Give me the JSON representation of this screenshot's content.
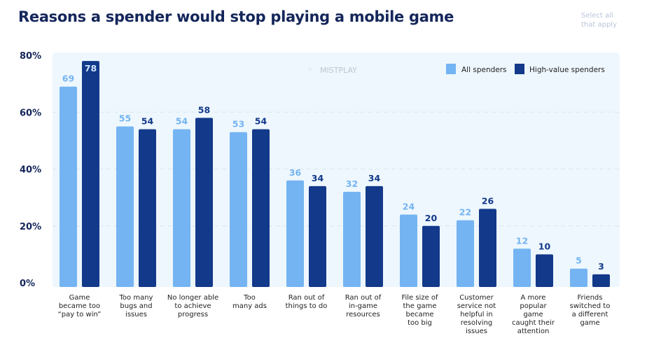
{
  "title": "Reasons a spender would stop playing a mobile game",
  "note": [
    "Select all",
    "that apply"
  ],
  "watermark": "MISTPLAY",
  "colors": {
    "all": "#74b4f2",
    "high": "#13398a",
    "plot_bg": "#eef7fd",
    "title": "#14265a"
  },
  "chart_data": {
    "type": "bar",
    "title": "Reasons a spender would stop playing a mobile game",
    "categories": [
      [
        "Game",
        "became too",
        "“pay to win”"
      ],
      [
        "Too many",
        "bugs and",
        "issues"
      ],
      [
        "No longer able",
        "to achieve",
        "progress"
      ],
      [
        "Too",
        "many ads"
      ],
      [
        "Ran out of",
        "things to do"
      ],
      [
        "Ran out of",
        "in-game",
        "resources"
      ],
      [
        "File size of",
        "the game",
        "became",
        "too big"
      ],
      [
        "Customer",
        "service not",
        "helpful in",
        "resolving",
        "issues"
      ],
      [
        "A more",
        "popular",
        "game",
        "caught their",
        "attention"
      ],
      [
        "Friends",
        "switched to",
        "a different",
        "game"
      ]
    ],
    "series": [
      {
        "name": "All spenders",
        "values": [
          69,
          55,
          54,
          53,
          36,
          32,
          24,
          22,
          12,
          5
        ]
      },
      {
        "name": "High-value spenders",
        "values": [
          78,
          54,
          58,
          54,
          34,
          34,
          20,
          26,
          10,
          3
        ]
      }
    ],
    "yticks": [
      "0%",
      "20%",
      "40%",
      "60%",
      "80%"
    ],
    "ylim": [
      0,
      80
    ],
    "grid": true,
    "legend": "top-right"
  }
}
